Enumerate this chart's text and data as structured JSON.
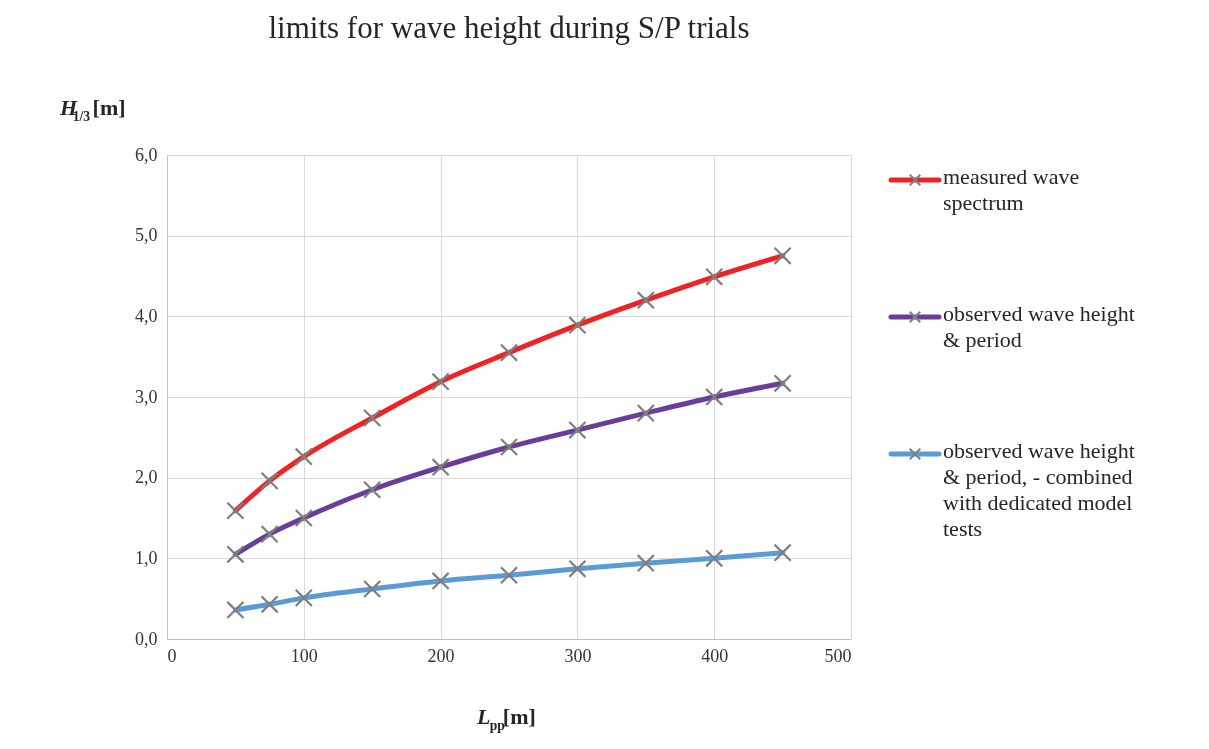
{
  "chart_data": {
    "type": "line",
    "title": "limits for wave height during S/P trials",
    "xlabel": "L$_{pp}$[m]",
    "ylabel": "H$_{1/3}$[m]",
    "x": [
      50,
      75,
      100,
      150,
      200,
      250,
      300,
      350,
      400,
      450
    ],
    "series": [
      {
        "name": "measured  wave spectrum",
        "color": "#ee2424",
        "marker": "cross",
        "values": [
          1.59,
          1.96,
          2.26,
          2.74,
          3.19,
          3.55,
          3.89,
          4.2,
          4.49,
          4.75
        ]
      },
      {
        "name": "observed wave height & period",
        "color": "#6a3d9a",
        "marker": "cross",
        "values": [
          1.05,
          1.3,
          1.5,
          1.85,
          2.13,
          2.38,
          2.59,
          2.8,
          3.0,
          3.17
        ]
      },
      {
        "name": "observed wave height & period, - combined with dedicated model tests",
        "color": "#5b9bd5",
        "marker": "cross",
        "values": [
          0.36,
          0.43,
          0.51,
          0.62,
          0.72,
          0.79,
          0.87,
          0.94,
          1.0,
          1.07
        ]
      }
    ],
    "xlim": [
      0,
      500
    ],
    "xticks": [
      0,
      100,
      200,
      300,
      400,
      500
    ],
    "ylim": [
      0,
      6
    ],
    "yticks": [
      {
        "value": 0,
        "label": "0,0"
      },
      {
        "value": 1,
        "label": "1,0"
      },
      {
        "value": 2,
        "label": "2,0"
      },
      {
        "value": 3,
        "label": "3,0"
      },
      {
        "value": 4,
        "label": "4,0"
      },
      {
        "value": 5,
        "label": "5,0"
      },
      {
        "value": 6,
        "label": "6,0"
      }
    ],
    "grid": true,
    "legend": "right",
    "line_style": "solid"
  }
}
